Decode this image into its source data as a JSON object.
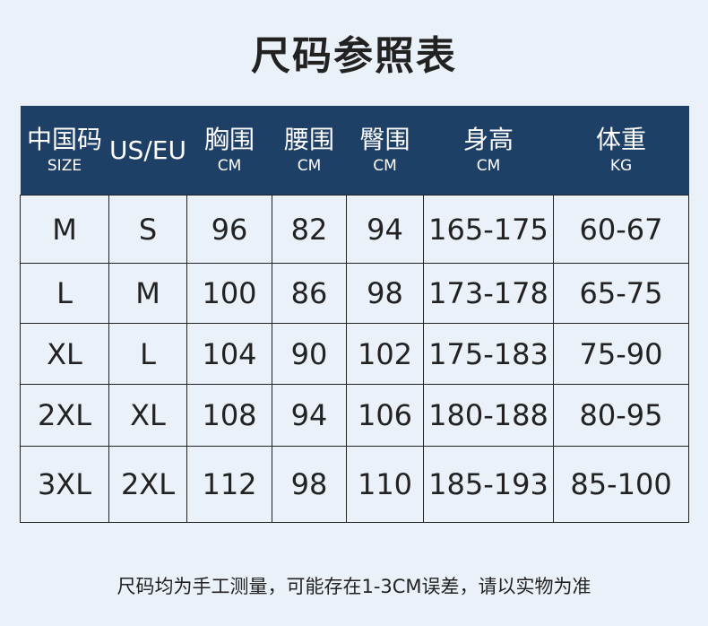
{
  "title": "尺码参照表",
  "headers": [
    {
      "main": "中国码",
      "sub": "SIZE"
    },
    {
      "main": "US/EU",
      "sub": ""
    },
    {
      "main": "胸围",
      "sub": "CM"
    },
    {
      "main": "腰围",
      "sub": "CM"
    },
    {
      "main": "臀围",
      "sub": "CM"
    },
    {
      "main": "身高",
      "sub": "CM"
    },
    {
      "main": "体重",
      "sub": "KG"
    }
  ],
  "rows": [
    [
      "M",
      "S",
      "96",
      "82",
      "94",
      "165-175",
      "60-67"
    ],
    [
      "L",
      "M",
      "100",
      "86",
      "98",
      "173-178",
      "65-75"
    ],
    [
      "XL",
      "L",
      "104",
      "90",
      "102",
      "175-183",
      "75-90"
    ],
    [
      "2XL",
      "XL",
      "108",
      "94",
      "106",
      "180-188",
      "80-95"
    ],
    [
      "3XL",
      "2XL",
      "112",
      "98",
      "110",
      "185-193",
      "85-100"
    ]
  ],
  "note": "尺码均为手工测量，可能存在1-3CM误差，请以实物为准",
  "colors": {
    "header_bg": "#1e3f66",
    "page_bg": "#eaf1f9"
  }
}
